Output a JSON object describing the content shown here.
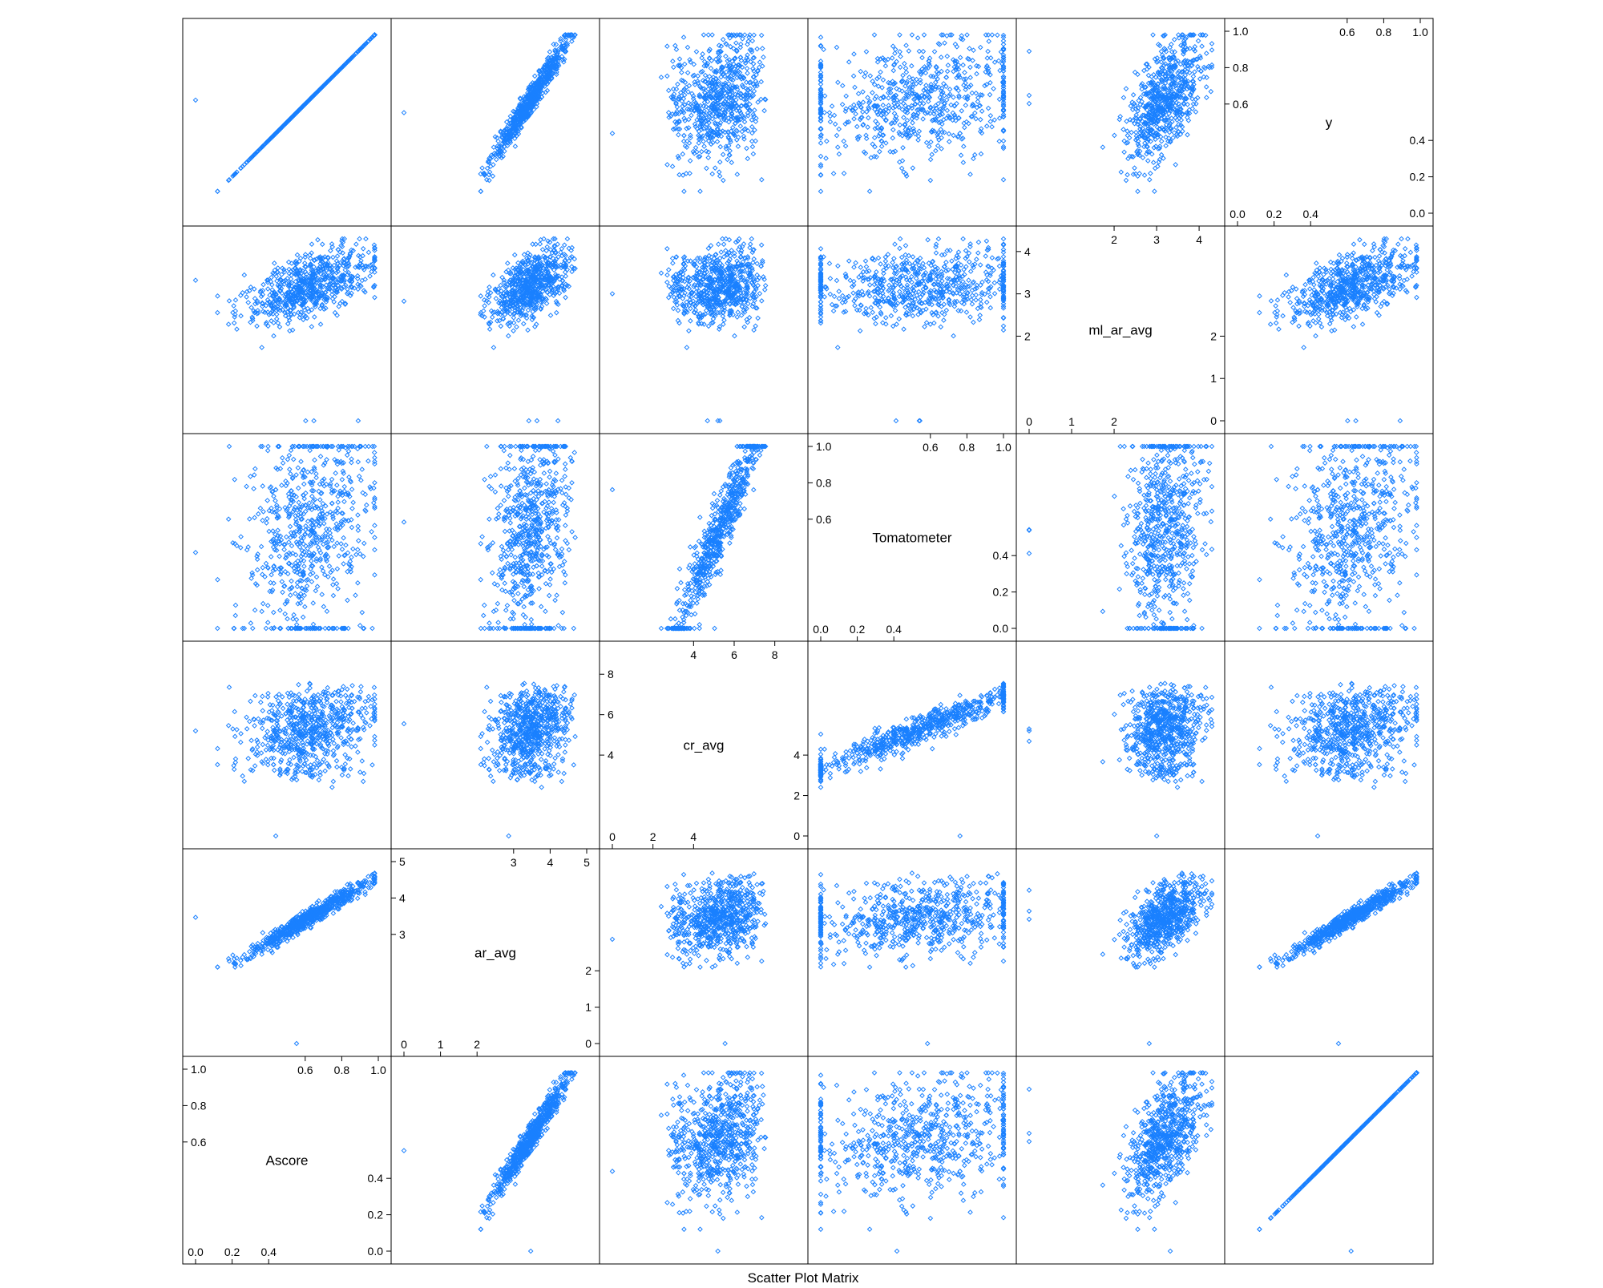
{
  "chart_data": {
    "type": "scatter",
    "title": "Scatter Plot Matrix",
    "variables": [
      {
        "name": "Ascore",
        "range": [
          0,
          1
        ],
        "ticks_low": [
          "0.0",
          "0.2",
          "0.4"
        ],
        "ticks_high": [
          "0.6",
          "0.8",
          "1.0"
        ],
        "tick_values_low": [
          0,
          0.2,
          0.4
        ],
        "tick_values_high": [
          0.6,
          0.8,
          1.0
        ]
      },
      {
        "name": "ar_avg",
        "range": [
          0,
          5
        ],
        "ticks_low": [
          "0",
          "1",
          "2"
        ],
        "ticks_high": [
          "3",
          "4",
          "5"
        ],
        "tick_values_low": [
          0,
          1,
          2
        ],
        "tick_values_high": [
          3,
          4,
          5
        ]
      },
      {
        "name": "cr_avg",
        "range": [
          0,
          9
        ],
        "ticks_low": [
          "0",
          "2",
          "4"
        ],
        "ticks_high": [
          "4",
          "6",
          "8"
        ],
        "tick_values_low": [
          0,
          2,
          4
        ],
        "tick_values_high": [
          4,
          6,
          8
        ]
      },
      {
        "name": "Tomatometer",
        "range": [
          0,
          1
        ],
        "ticks_low": [
          "0.0",
          "0.2",
          "0.4"
        ],
        "ticks_high": [
          "0.6",
          "0.8",
          "1.0"
        ],
        "tick_values_low": [
          0,
          0.2,
          0.4
        ],
        "tick_values_high": [
          0.6,
          0.8,
          1.0
        ]
      },
      {
        "name": "ml_ar_avg",
        "range": [
          0,
          4.3
        ],
        "ticks_low": [
          "0",
          "1",
          "2"
        ],
        "ticks_high": [
          "2",
          "3",
          "4"
        ],
        "tick_values_low": [
          0,
          1,
          2
        ],
        "tick_values_high": [
          2,
          3,
          4
        ]
      },
      {
        "name": "y",
        "range": [
          0,
          1
        ],
        "ticks_low": [
          "0.0",
          "0.2",
          "0.4"
        ],
        "ticks_high": [
          "0.6",
          "0.8",
          "1.0"
        ],
        "tick_values_low": [
          0,
          0.2,
          0.4
        ],
        "tick_values_high": [
          0.6,
          0.8,
          1.0
        ]
      }
    ],
    "point_color": "#1a80ff",
    "marker": "open-diamond",
    "panel_grid": "6x6",
    "grid": false
  }
}
